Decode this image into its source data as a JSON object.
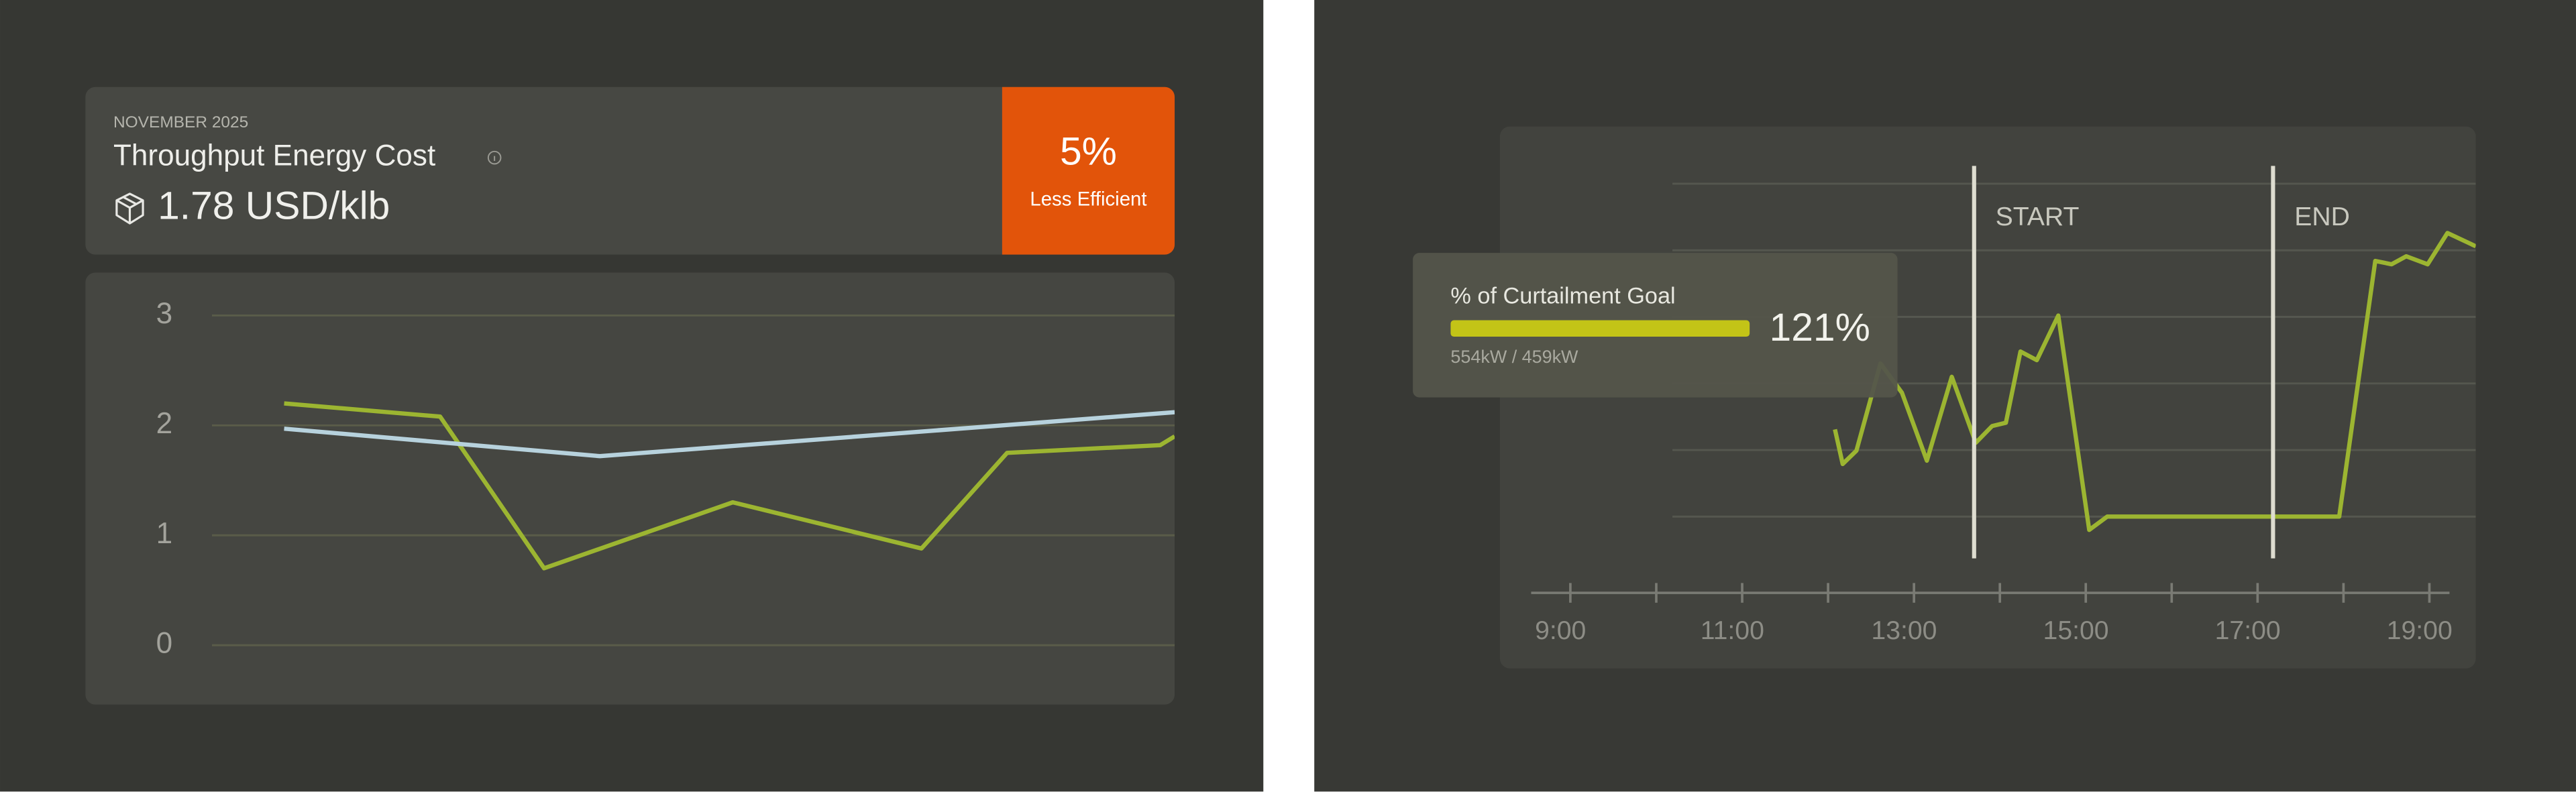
{
  "header": {
    "period": "NOVEMBER 2025",
    "title": "Throughput Energy Cost",
    "value": "1.78 USD/klb"
  },
  "badge": {
    "value": "5%",
    "label": "Less Efficient"
  },
  "chart_data": [
    {
      "type": "line",
      "xlim": [
        0,
        100
      ],
      "ylim": [
        -0.54,
        3.39
      ],
      "yticks": [
        0,
        1,
        2,
        3
      ],
      "grid": true,
      "series": [
        {
          "color": "#9cb531",
          "x": [
            7.5,
            23.7,
            34.5,
            54.1,
            73.7,
            82.6,
            98.5,
            100
          ],
          "values": [
            2.2,
            2.08,
            0.7,
            1.3,
            0.88,
            1.75,
            1.82,
            1.9
          ]
        },
        {
          "color": "#b7d2dd",
          "x": [
            7.5,
            40.3,
            100
          ],
          "values": [
            1.97,
            1.72,
            2.12
          ]
        }
      ]
    },
    {
      "type": "line",
      "xlim": [
        8.18,
        19.54
      ],
      "ylim": [
        -2.28,
        5.86
      ],
      "xticks": [
        {
          "value": 9,
          "label": "9:00"
        },
        {
          "value": 11,
          "label": "11:00"
        },
        {
          "value": 13,
          "label": "13:00"
        },
        {
          "value": 15,
          "label": "15:00"
        },
        {
          "value": 17,
          "label": "17:00"
        },
        {
          "value": 19,
          "label": "19:00"
        }
      ],
      "minor_xticks": [
        10,
        12,
        14,
        16,
        18
      ],
      "ygrid": [
        0,
        1,
        2,
        3,
        4,
        5
      ],
      "grid": true,
      "series": [
        {
          "color": "#9cb531",
          "x": [
            12.08,
            12.17,
            12.33,
            12.61,
            12.86,
            13.15,
            13.44,
            13.72,
            13.91,
            14.07,
            14.24,
            14.43,
            14.68,
            15.04,
            15.25,
            17.95,
            18.37,
            18.56,
            18.73,
            18.98,
            19.21,
            19.54
          ],
          "values": [
            1.31,
            0.79,
            0.99,
            2.3,
            1.86,
            0.84,
            2.1,
            1.11,
            1.36,
            1.41,
            2.48,
            2.35,
            3.02,
            -0.2,
            0,
            0,
            3.84,
            3.79,
            3.91,
            3.79,
            4.26,
            4.06
          ]
        }
      ],
      "markers": [
        {
          "label": "START",
          "x": 13.7
        },
        {
          "label": "END",
          "x": 17.18
        }
      ],
      "tooltip": {
        "title": "% of Curtailment Goal",
        "value": 121,
        "value_label": "121%",
        "detail": "554kW / 459kW",
        "color": "#c3c417"
      }
    }
  ]
}
